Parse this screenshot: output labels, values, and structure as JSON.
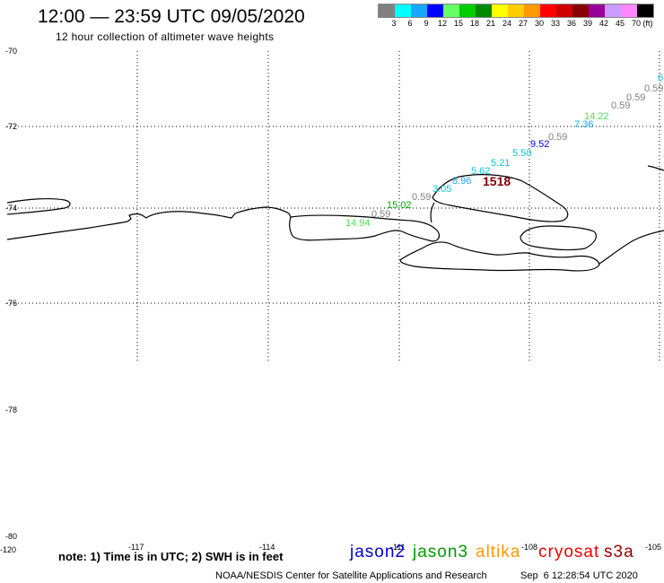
{
  "title": "12:00 — 23:59 UTC 09/05/2020",
  "subtitle": "12 hour collection of altimeter wave heights",
  "colorbar": {
    "colors": [
      "#808080",
      "#00ffff",
      "#1aa6ff",
      "#0000ff",
      "#66ff66",
      "#00cc00",
      "#008800",
      "#ffff00",
      "#ffcc00",
      "#ff9900",
      "#ff0000",
      "#cc0000",
      "#880000",
      "#990099",
      "#cc99ff",
      "#ff88ff",
      "#000000"
    ],
    "labels": [
      "3",
      "6",
      "9",
      "12",
      "15",
      "18",
      "21",
      "24",
      "27",
      "30",
      "33",
      "36",
      "39",
      "42",
      "45",
      "70"
    ],
    "unit": "(ft)"
  },
  "map": {
    "lat_labels": [
      "-70",
      "-72",
      "-74",
      "-76",
      "-78",
      "-80"
    ],
    "lon_labels": [
      "-120",
      "-117",
      "-114",
      "-111",
      "-108",
      "-105"
    ],
    "track_labels": [
      {
        "text": "14.94",
        "color": "#55dd55"
      },
      {
        "text": "0.59",
        "color": "#808080"
      },
      {
        "text": "15.02",
        "color": "#00aa00"
      },
      {
        "text": "0.59",
        "color": "#808080"
      },
      {
        "text": "3.05",
        "color": "#00c8d8"
      },
      {
        "text": "8.96",
        "color": "#1aa6e6"
      },
      {
        "text": "5.62",
        "color": "#00c8d8"
      },
      {
        "text": "1518",
        "color": "#800000"
      },
      {
        "text": "5.21",
        "color": "#00c8d8"
      },
      {
        "text": "5.50",
        "color": "#00c8d8"
      },
      {
        "text": "9.52",
        "color": "#0000dd"
      },
      {
        "text": "0.59",
        "color": "#808080"
      },
      {
        "text": "7.36",
        "color": "#1aa6e6"
      },
      {
        "text": "14.22",
        "color": "#55dd55"
      },
      {
        "text": "0.59",
        "color": "#808080"
      },
      {
        "text": "0.59",
        "color": "#808080"
      },
      {
        "text": "0.59",
        "color": "#808080"
      },
      {
        "text": "6",
        "color": "#00c8d8"
      }
    ]
  },
  "note": "note: 1) Time is in UTC; 2) SWH is in feet",
  "satellites": [
    {
      "name": "jason2",
      "color": "#0000cc"
    },
    {
      "name": "jason3",
      "color": "#009900"
    },
    {
      "name": "altika",
      "color": "#ff9900"
    },
    {
      "name": "cryosat",
      "color": "#ee0000"
    },
    {
      "name": "s3a",
      "color": "#990000"
    }
  ],
  "footer": {
    "credit": "NOAA/NESDIS Center for Satellite Applications and Research",
    "timestamp": "Sep  6 12:28:54 UTC 2020"
  }
}
